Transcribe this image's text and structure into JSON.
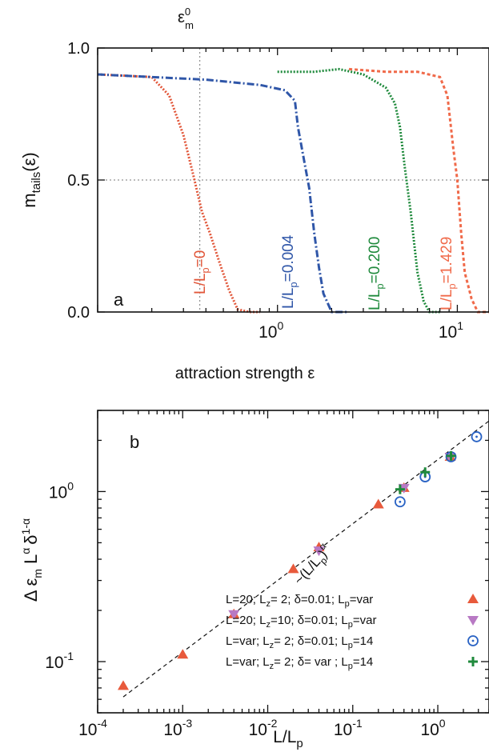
{
  "chart_data": [
    {
      "panel_label": "a",
      "type": "line",
      "top_marker_label": "ε",
      "top_marker_sup": "0",
      "top_marker_sub": "m",
      "xlabel": "attraction strength ε",
      "ylabel_main": "m",
      "ylabel_sub": "tails",
      "ylabel_tail": "(ε)",
      "xscale": "log",
      "xlim": [
        0.1,
        15
      ],
      "ylim": [
        0.0,
        1.0
      ],
      "yticks": [
        {
          "value": 0.0,
          "label": "0.0"
        },
        {
          "value": 0.5,
          "label": "0.5"
        },
        {
          "value": 1.0,
          "label": "1.0"
        }
      ],
      "xticks": [
        {
          "value": 1,
          "base": "10",
          "exp": "0"
        },
        {
          "value": 10,
          "base": "10",
          "exp": "1"
        }
      ],
      "guides": {
        "x": 0.37,
        "y": 0.5
      },
      "series": [
        {
          "label_main": "L/L",
          "label_sub": "p",
          "label_tail": "=0",
          "color": "#e2573a",
          "dash": "2 2",
          "points": [
            [
              0.1,
              0.9
            ],
            [
              0.2,
              0.89
            ],
            [
              0.25,
              0.82
            ],
            [
              0.3,
              0.67
            ],
            [
              0.34,
              0.52
            ],
            [
              0.38,
              0.38
            ],
            [
              0.42,
              0.3
            ],
            [
              0.48,
              0.18
            ],
            [
              0.54,
              0.08
            ],
            [
              0.6,
              0.01
            ],
            [
              0.7,
              0.0
            ],
            [
              0.8,
              0.0
            ]
          ]
        },
        {
          "label_main": "L/L",
          "label_sub": "p",
          "label_tail": "=0.004",
          "color": "#2f56a8",
          "dash": "9 3 2 3",
          "points": [
            [
              0.1,
              0.9
            ],
            [
              0.4,
              0.88
            ],
            [
              0.8,
              0.86
            ],
            [
              1.1,
              0.84
            ],
            [
              1.25,
              0.8
            ],
            [
              1.3,
              0.7
            ],
            [
              1.4,
              0.58
            ],
            [
              1.5,
              0.47
            ],
            [
              1.6,
              0.3
            ],
            [
              1.7,
              0.17
            ],
            [
              1.8,
              0.07
            ],
            [
              2.0,
              0.0
            ],
            [
              2.5,
              0.0
            ]
          ]
        },
        {
          "label_main": "L/L",
          "label_sub": "p",
          "label_tail": "=0.200",
          "color": "#1f8a3c",
          "dash": "2 2",
          "points": [
            [
              1.0,
              0.91
            ],
            [
              1.6,
              0.91
            ],
            [
              2.2,
              0.92
            ],
            [
              3.0,
              0.9
            ],
            [
              4.0,
              0.85
            ],
            [
              4.5,
              0.79
            ],
            [
              4.8,
              0.7
            ],
            [
              5.1,
              0.55
            ],
            [
              5.5,
              0.38
            ],
            [
              6.0,
              0.15
            ],
            [
              6.5,
              0.04
            ],
            [
              7.0,
              0.0
            ],
            [
              8.0,
              0.0
            ]
          ]
        },
        {
          "label_main": "L/L",
          "label_sub": "p",
          "label_tail": "=1.429",
          "color": "#f06a4a",
          "dash": "4 3",
          "points": [
            [
              2.5,
              0.92
            ],
            [
              4.0,
              0.91
            ],
            [
              6.0,
              0.91
            ],
            [
              8.0,
              0.89
            ],
            [
              8.8,
              0.82
            ],
            [
              9.5,
              0.62
            ],
            [
              10.0,
              0.5
            ],
            [
              10.5,
              0.3
            ],
            [
              11.0,
              0.15
            ],
            [
              12.0,
              0.05
            ],
            [
              13.0,
              0.0
            ],
            [
              15.0,
              0.0
            ]
          ]
        }
      ]
    },
    {
      "panel_label": "b",
      "type": "scatter",
      "xlabel_main": "L/L",
      "xlabel_sub": "p",
      "ylabel_delta": "Δ ε",
      "ylabel_m": "m",
      "ylabel_L": "L",
      "ylabel_Lexp": "α",
      "ylabel_d": "δ",
      "ylabel_dexp": "1-α",
      "xscale": "log",
      "yscale": "log",
      "xlim": [
        0.0001,
        4
      ],
      "ylim": [
        0.05,
        3
      ],
      "xticks": [
        {
          "value": 0.0001,
          "base": "10",
          "exp": "-4"
        },
        {
          "value": 0.001,
          "base": "10",
          "exp": "-3"
        },
        {
          "value": 0.01,
          "base": "10",
          "exp": "-2"
        },
        {
          "value": 0.1,
          "base": "10",
          "exp": "-1"
        },
        {
          "value": 1,
          "base": "10",
          "exp": "0"
        }
      ],
      "yticks": [
        {
          "value": 0.1,
          "base": "10",
          "exp": "-1"
        },
        {
          "value": 1,
          "base": "10",
          "exp": "0"
        }
      ],
      "fit": {
        "label": "~(L/L",
        "label_sub": "p",
        "label_tail": ")",
        "label_exp": "α",
        "x": [
          0.0002,
          4
        ],
        "y": [
          0.062,
          2.6
        ]
      },
      "series": [
        {
          "label": "L=20; L",
          "label_sub": "z",
          "label_tail": "=  2; δ=0.01; L",
          "label_sub2": "p",
          "label_tail2": "=var",
          "marker": "triangle-up",
          "color": "#e85a3c",
          "points": [
            [
              0.0002,
              0.072
            ],
            [
              0.001,
              0.11
            ],
            [
              0.004,
              0.19
            ],
            [
              0.02,
              0.35
            ],
            [
              0.04,
              0.47
            ],
            [
              0.2,
              0.84
            ],
            [
              0.4,
              1.05
            ],
            [
              1.4,
              1.6
            ]
          ]
        },
        {
          "label": "L=20; L",
          "label_sub": "z",
          "label_tail": "=10; δ=0.01; L",
          "label_sub2": "p",
          "label_tail2": "=var",
          "marker": "triangle-down",
          "color": "#b879c4",
          "points": [
            [
              0.004,
              0.19
            ],
            [
              0.04,
              0.45
            ],
            [
              0.4,
              1.05
            ],
            [
              1.4,
              1.6
            ]
          ]
        },
        {
          "label": "L=var; L",
          "label_sub": "z",
          "label_tail": "=  2; δ=0.01; L",
          "label_sub2": "p",
          "label_tail2": "=14",
          "marker": "circle-dot",
          "color": "#2a63c4",
          "points": [
            [
              0.36,
              0.87
            ],
            [
              0.71,
              1.22
            ],
            [
              1.43,
              1.6
            ],
            [
              2.86,
              2.1
            ]
          ]
        },
        {
          "label": "L=var; L",
          "label_sub": "z",
          "label_tail": "=  2; δ= var  ; L",
          "label_sub2": "p",
          "label_tail2": "=14",
          "marker": "plus",
          "color": "#1f8a3c",
          "points": [
            [
              0.36,
              1.03
            ],
            [
              0.71,
              1.3
            ],
            [
              1.43,
              1.62
            ]
          ]
        }
      ]
    }
  ]
}
